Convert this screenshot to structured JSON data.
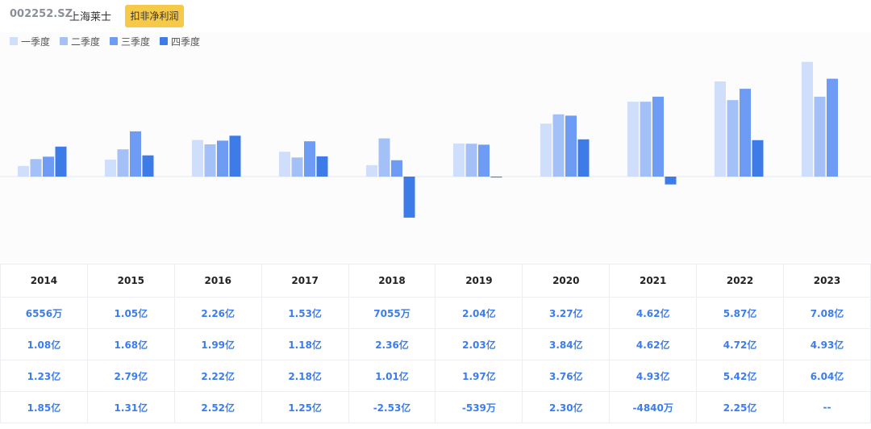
{
  "header": {
    "code": "002252.SZ",
    "name": "上海莱士",
    "tag_label": "扣非净利润"
  },
  "legend": [
    {
      "label": "一季度",
      "color": "#cfdffb"
    },
    {
      "label": "二季度",
      "color": "#a3c1f7"
    },
    {
      "label": "三季度",
      "color": "#6e9bf3"
    },
    {
      "label": "四季度",
      "color": "#3d7be8"
    }
  ],
  "chart_data": {
    "type": "bar",
    "categories": [
      "2014",
      "2015",
      "2016",
      "2017",
      "2018",
      "2019",
      "2020",
      "2021",
      "2022",
      "2023"
    ],
    "unit": "亿",
    "series": [
      {
        "name": "一季度",
        "values": [
          0.6556,
          1.05,
          2.26,
          1.53,
          0.7055,
          2.04,
          3.27,
          4.62,
          5.87,
          7.08
        ]
      },
      {
        "name": "二季度",
        "values": [
          1.08,
          1.68,
          1.99,
          1.18,
          2.36,
          2.03,
          3.84,
          4.62,
          4.72,
          4.93
        ]
      },
      {
        "name": "三季度",
        "values": [
          1.23,
          2.79,
          2.22,
          2.18,
          1.01,
          1.97,
          3.76,
          4.93,
          5.42,
          6.04
        ]
      },
      {
        "name": "四季度",
        "values": [
          1.85,
          1.31,
          2.52,
          1.25,
          -2.53,
          -0.0539,
          2.3,
          -0.484,
          2.25,
          null
        ]
      }
    ]
  },
  "table": {
    "years": [
      "2014",
      "2015",
      "2016",
      "2017",
      "2018",
      "2019",
      "2020",
      "2021",
      "2022",
      "2023"
    ],
    "rows": [
      [
        "6556万",
        "1.05亿",
        "2.26亿",
        "1.53亿",
        "7055万",
        "2.04亿",
        "3.27亿",
        "4.62亿",
        "5.87亿",
        "7.08亿"
      ],
      [
        "1.08亿",
        "1.68亿",
        "1.99亿",
        "1.18亿",
        "2.36亿",
        "2.03亿",
        "3.84亿",
        "4.62亿",
        "4.72亿",
        "4.93亿"
      ],
      [
        "1.23亿",
        "2.79亿",
        "2.22亿",
        "2.18亿",
        "1.01亿",
        "1.97亿",
        "3.76亿",
        "4.93亿",
        "5.42亿",
        "6.04亿"
      ],
      [
        "1.85亿",
        "1.31亿",
        "2.52亿",
        "1.25亿",
        "-2.53亿",
        "-539万",
        "2.30亿",
        "-4840万",
        "2.25亿",
        "--"
      ]
    ]
  }
}
